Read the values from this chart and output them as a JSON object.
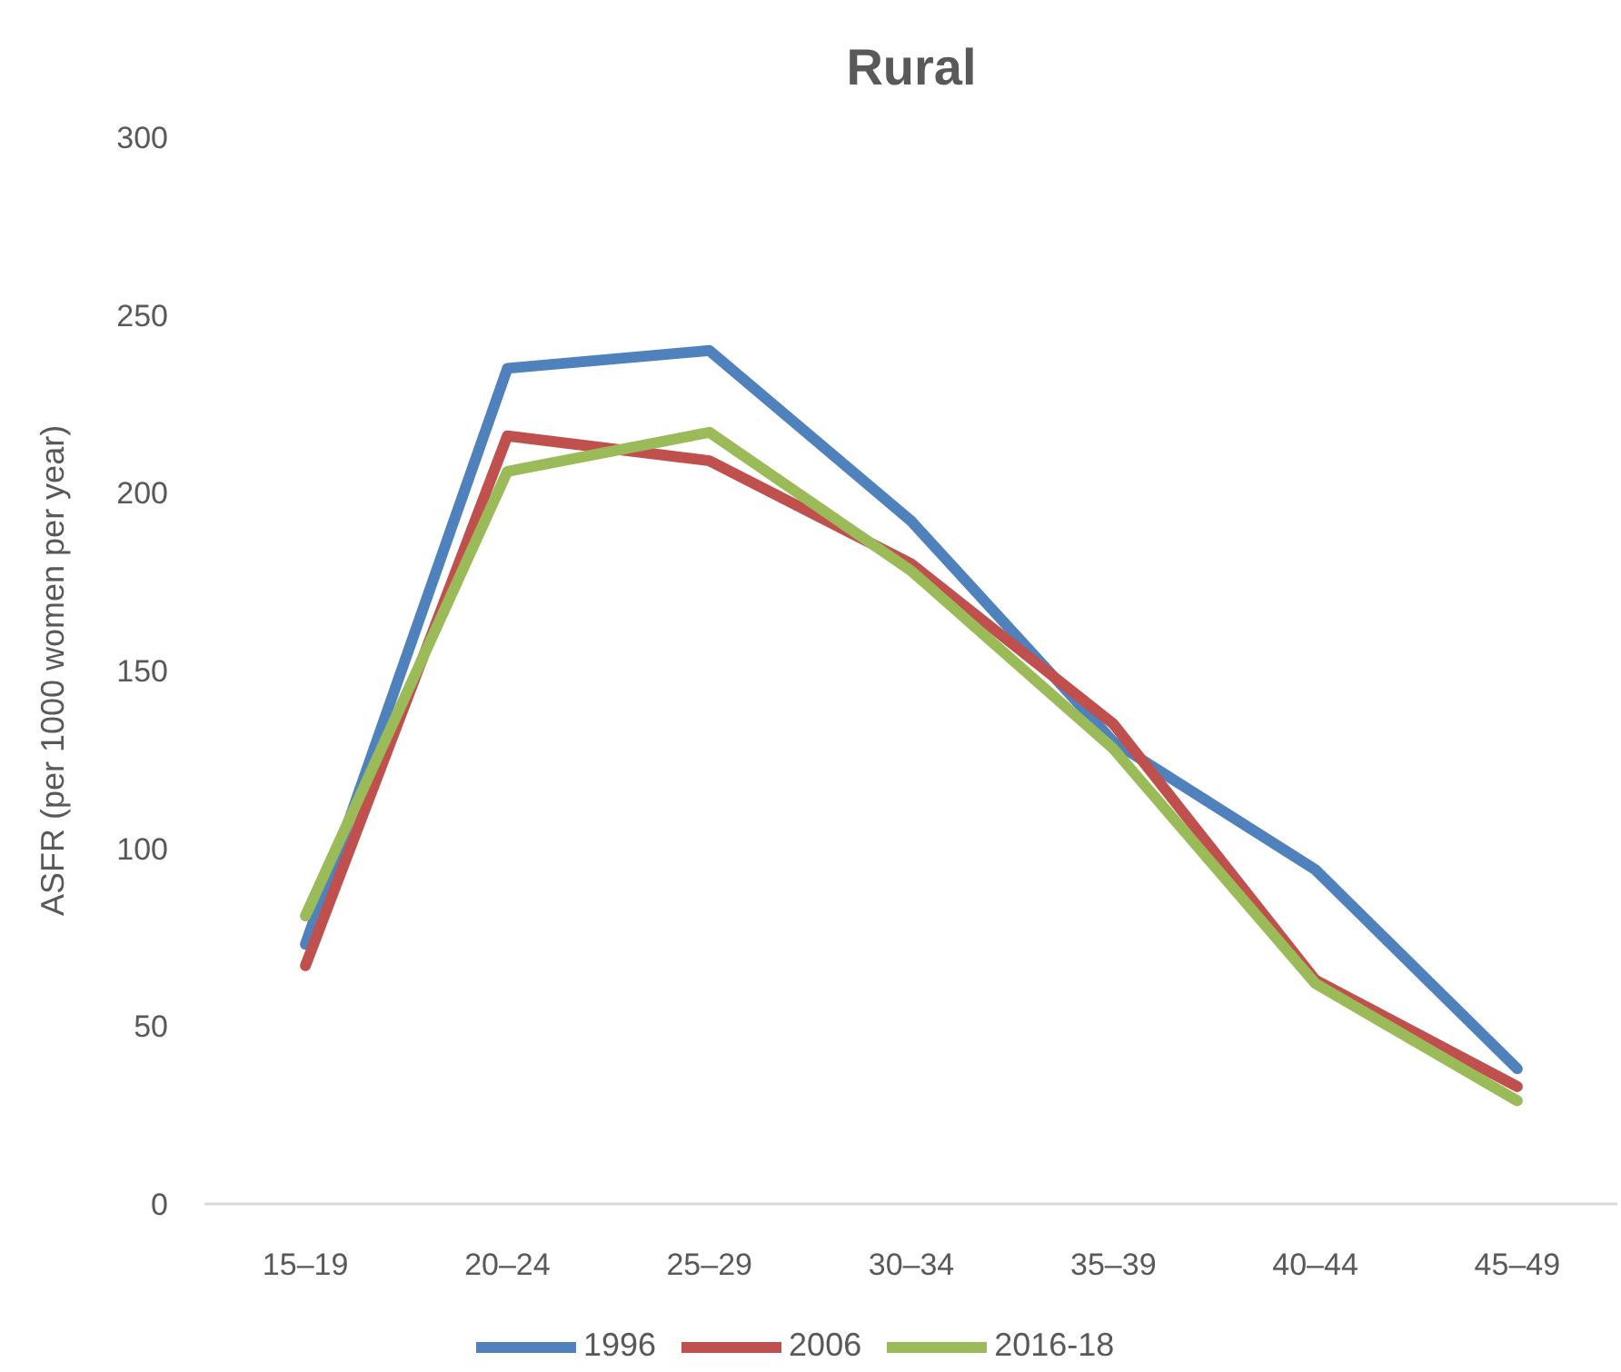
{
  "chart_data": {
    "type": "line",
    "title": "Rural",
    "ylabel": "ASFR (per 1000 women per year)",
    "categories": [
      "15–19",
      "20–24",
      "25–29",
      "30–34",
      "35–39",
      "40–44",
      "45–49"
    ],
    "series": [
      {
        "name": "1996",
        "color": "#4f81bd",
        "values": [
          73,
          235,
          240,
          192,
          130,
          94,
          38
        ]
      },
      {
        "name": "2006",
        "color": "#c0504d",
        "values": [
          67,
          216,
          209,
          180,
          135,
          63,
          33
        ]
      },
      {
        "name": "2016-18",
        "color": "#9bbb59",
        "values": [
          81,
          206,
          217,
          178,
          128,
          62,
          29
        ]
      }
    ],
    "ylim": [
      0,
      300
    ],
    "yticks": [
      0,
      50,
      100,
      150,
      200,
      250,
      300
    ],
    "grid": false,
    "legend": "bottom",
    "line_style": "solid"
  }
}
